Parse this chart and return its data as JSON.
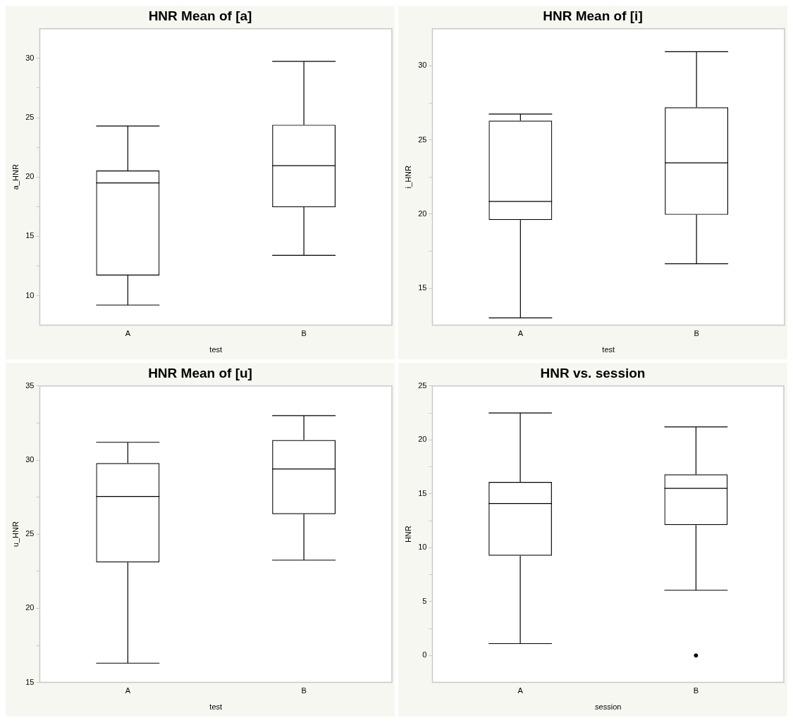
{
  "chart_data": [
    {
      "type": "box",
      "title": "HNR Mean of [a]",
      "xlabel": "test",
      "ylabel": "a_HNR",
      "categories": [
        "A",
        "B"
      ],
      "color": "#000000",
      "grid": false,
      "legend": false,
      "ylim": [
        7.5,
        32.5
      ],
      "yticks": [
        10,
        {
          "value": 12.5,
          "label": null
        },
        15,
        {
          "value": 17.5,
          "label": null
        },
        20,
        {
          "value": 22.5,
          "label": null
        },
        25,
        {
          "value": 27.5,
          "label": null
        },
        30
      ],
      "boxes": [
        {
          "low": 9.2,
          "q1": 11.7,
          "median": 19.5,
          "q3": 20.55,
          "high": 24.3
        },
        {
          "low": 13.4,
          "q1": 17.45,
          "median": 20.95,
          "q3": 24.4,
          "high": 29.75
        }
      ]
    },
    {
      "type": "box",
      "title": "HNR Mean of [i]",
      "xlabel": "test",
      "ylabel": "i_HNR",
      "categories": [
        "A",
        "B"
      ],
      "color": "#000000",
      "grid": false,
      "legend": false,
      "ylim": [
        12.5,
        32.5
      ],
      "yticks": [
        15,
        {
          "value": 17.5,
          "label": null
        },
        20,
        {
          "value": 22.5,
          "label": null
        },
        25,
        {
          "value": 27.5,
          "label": null
        },
        30
      ],
      "boxes": [
        {
          "low": 13.0,
          "q1": 19.6,
          "median": 20.85,
          "q3": 26.3,
          "high": 26.75
        },
        {
          "low": 16.65,
          "q1": 19.95,
          "median": 23.45,
          "q3": 27.2,
          "high": 30.95
        }
      ]
    },
    {
      "type": "box",
      "title": "HNR Mean of [u]",
      "xlabel": "test",
      "ylabel": "u_HNR",
      "categories": [
        "A",
        "B"
      ],
      "color": "#000000",
      "grid": false,
      "legend": false,
      "ylim": [
        15,
        35
      ],
      "yticks": [
        15,
        {
          "value": 17.5,
          "label": null
        },
        20,
        {
          "value": 22.5,
          "label": null
        },
        25,
        {
          "value": 27.5,
          "label": null
        },
        30,
        {
          "value": 32.5,
          "label": null
        },
        35
      ],
      "boxes": [
        {
          "low": 16.3,
          "q1": 23.1,
          "median": 27.55,
          "q3": 29.8,
          "high": 31.2
        },
        {
          "low": 23.25,
          "q1": 26.35,
          "median": 29.4,
          "q3": 31.35,
          "high": 33.0
        }
      ]
    },
    {
      "type": "box",
      "title": "HNR vs. session",
      "xlabel": "session",
      "ylabel": "HNR",
      "categories": [
        "A",
        "B"
      ],
      "color": "#000000",
      "grid": false,
      "legend": false,
      "ylim": [
        -2.5,
        25
      ],
      "yticks": [
        0,
        {
          "value": 2.5,
          "label": null
        },
        5,
        {
          "value": 7.5,
          "label": null
        },
        10,
        {
          "value": 12.5,
          "label": null
        },
        15,
        {
          "value": 17.5,
          "label": null
        },
        20,
        {
          "value": 22.5,
          "label": null
        },
        25
      ],
      "boxes": [
        {
          "low": 1.1,
          "q1": 9.25,
          "median": 14.1,
          "q3": 16.1,
          "high": 22.5
        },
        {
          "low": 6.05,
          "q1": 12.1,
          "median": 15.5,
          "q3": 16.8,
          "high": 21.2,
          "outliers": [
            0
          ]
        }
      ]
    }
  ]
}
